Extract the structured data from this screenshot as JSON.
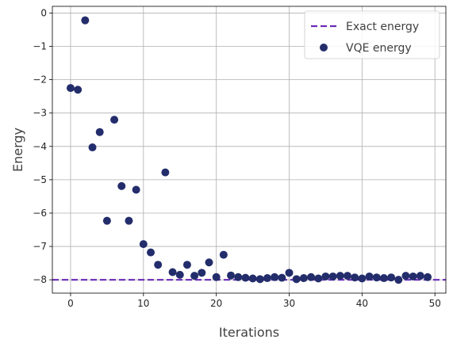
{
  "chart_data": {
    "type": "scatter",
    "xlabel": "Iterations",
    "ylabel": "Energy",
    "xlim": [
      -2.5,
      51.5
    ],
    "ylim": [
      -8.4,
      0.2
    ],
    "x_ticks": [
      0,
      10,
      20,
      30,
      40,
      50
    ],
    "x_tick_labels": [
      "0",
      "10",
      "20",
      "30",
      "40",
      "50"
    ],
    "y_ticks": [
      0,
      -1,
      -2,
      -3,
      -4,
      -5,
      -6,
      -7,
      -8
    ],
    "y_tick_labels": [
      "0",
      "−1",
      "−2",
      "−3",
      "−4",
      "−5",
      "−6",
      "−7",
      "−8"
    ],
    "grid": true,
    "legend_position": "top-right",
    "reference_line": {
      "name": "Exact energy",
      "y": -8.0,
      "color": "#6a2bb7",
      "style": "dashed"
    },
    "series": [
      {
        "name": "VQE energy",
        "color": "#232d6b",
        "x": [
          0,
          1,
          2,
          3,
          4,
          5,
          6,
          7,
          8,
          9,
          10,
          11,
          12,
          13,
          14,
          15,
          16,
          17,
          18,
          19,
          20,
          21,
          22,
          23,
          24,
          25,
          26,
          27,
          28,
          29,
          30,
          31,
          32,
          33,
          34,
          35,
          36,
          37,
          38,
          39,
          40,
          41,
          42,
          43,
          44,
          45,
          46,
          47,
          48,
          49
        ],
        "y": [
          -2.25,
          -2.3,
          -0.22,
          -4.03,
          -3.57,
          -6.23,
          -3.2,
          -5.19,
          -6.23,
          -5.3,
          -6.93,
          -7.18,
          -7.55,
          -4.78,
          -7.77,
          -7.85,
          -7.55,
          -7.88,
          -7.79,
          -7.48,
          -7.92,
          -7.25,
          -7.87,
          -7.92,
          -7.94,
          -7.96,
          -7.98,
          -7.95,
          -7.92,
          -7.94,
          -7.79,
          -7.98,
          -7.95,
          -7.92,
          -7.96,
          -7.9,
          -7.9,
          -7.88,
          -7.88,
          -7.93,
          -7.96,
          -7.9,
          -7.93,
          -7.95,
          -7.93,
          -8.0,
          -7.88,
          -7.9,
          -7.88,
          -7.92
        ]
      }
    ]
  }
}
